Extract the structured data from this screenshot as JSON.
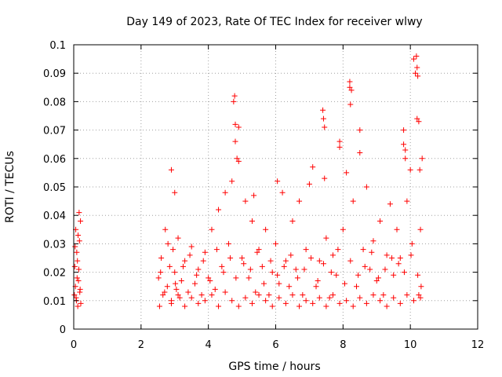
{
  "chart_data": {
    "type": "scatter",
    "title": "Day 149 of 2023, Rate Of TEC Index for receiver wlwy",
    "xlabel": "GPS time / hours",
    "ylabel": "ROTI / TECUs",
    "xlim": [
      0,
      12
    ],
    "ylim": [
      0,
      0.1
    ],
    "xticks": [
      "0",
      "2",
      "4",
      "6",
      "8",
      "10",
      "12"
    ],
    "yticks": [
      "0",
      "0.01",
      "0.02",
      "0.03",
      "0.04",
      "0.05",
      "0.06",
      "0.07",
      "0.08",
      "0.09",
      "0.1"
    ],
    "grid": true,
    "marker": "plus",
    "color": "#ff0000",
    "series": [
      {
        "x": [
          0.02,
          0.03,
          0.05,
          0.06,
          0.08,
          0.09,
          0.1,
          0.12,
          0.13,
          0.15,
          0.16,
          0.18,
          0.2,
          0.21,
          0.04,
          0.07,
          0.11,
          0.14,
          0.17,
          0.19,
          2.52,
          2.6,
          2.65,
          2.72,
          2.78,
          2.85,
          2.9,
          2.95,
          3.0,
          3.05,
          3.1,
          3.15,
          3.2,
          3.3,
          3.4,
          3.5,
          3.6,
          3.7,
          3.8,
          3.9,
          4.0,
          4.1,
          4.2,
          4.3,
          4.4,
          4.5,
          4.6,
          4.7,
          4.75,
          4.8,
          4.85,
          4.9,
          5.0,
          5.1,
          5.2,
          5.3,
          5.4,
          5.5,
          5.6,
          5.7,
          5.8,
          5.9,
          6.0,
          6.1,
          6.2,
          6.3,
          6.4,
          6.5,
          6.6,
          6.7,
          6.8,
          6.9,
          7.0,
          7.1,
          7.2,
          7.3,
          7.4,
          7.45,
          7.5,
          7.6,
          7.7,
          7.8,
          7.9,
          8.0,
          8.1,
          8.2,
          8.25,
          8.3,
          8.4,
          8.5,
          8.6,
          8.7,
          8.8,
          8.9,
          9.0,
          9.1,
          9.2,
          9.3,
          9.4,
          9.5,
          9.6,
          9.7,
          9.8,
          9.85,
          9.9,
          10.0,
          10.05,
          10.1,
          10.15,
          10.2,
          10.25,
          10.3,
          10.35,
          2.55,
          2.7,
          2.9,
          3.1,
          3.3,
          3.5,
          3.7,
          3.9,
          4.1,
          4.3,
          4.5,
          4.7,
          4.9,
          5.1,
          5.3,
          5.5,
          5.7,
          5.9,
          6.1,
          6.3,
          6.5,
          6.7,
          6.9,
          7.1,
          7.3,
          7.5,
          7.7,
          7.9,
          8.1,
          8.3,
          8.5,
          8.7,
          8.9,
          9.1,
          9.3,
          9.5,
          9.7,
          9.9,
          10.1,
          10.3,
          2.58,
          2.8,
          3.02,
          3.25,
          3.45,
          3.65,
          3.85,
          4.05,
          4.25,
          4.45,
          4.65,
          4.82,
          5.05,
          5.25,
          5.45,
          5.65,
          5.85,
          6.05,
          6.25,
          6.45,
          6.65,
          6.85,
          7.05,
          7.25,
          7.42,
          7.65,
          7.85,
          8.05,
          8.22,
          8.45,
          8.65,
          8.85,
          9.05,
          9.25,
          9.45,
          9.65,
          9.82,
          10.02,
          10.22,
          10.32,
          2.9,
          3.0,
          4.78,
          4.8,
          4.9,
          8.2,
          8.22,
          9.8,
          9.85,
          10.18,
          10.2,
          10.22,
          10.25,
          10.28,
          7.42,
          7.45,
          7.9,
          8.5,
          5.35,
          6.05
        ],
        "y": [
          0.012,
          0.022,
          0.015,
          0.035,
          0.01,
          0.027,
          0.018,
          0.008,
          0.033,
          0.021,
          0.041,
          0.013,
          0.038,
          0.009,
          0.029,
          0.011,
          0.024,
          0.017,
          0.031,
          0.014,
          0.018,
          0.025,
          0.012,
          0.035,
          0.015,
          0.022,
          0.01,
          0.028,
          0.02,
          0.014,
          0.032,
          0.011,
          0.017,
          0.024,
          0.013,
          0.029,
          0.016,
          0.021,
          0.012,
          0.027,
          0.018,
          0.035,
          0.014,
          0.042,
          0.022,
          0.048,
          0.03,
          0.052,
          0.08,
          0.072,
          0.06,
          0.071,
          0.025,
          0.045,
          0.018,
          0.038,
          0.013,
          0.028,
          0.022,
          0.035,
          0.012,
          0.02,
          0.03,
          0.016,
          0.048,
          0.024,
          0.015,
          0.038,
          0.021,
          0.045,
          0.012,
          0.028,
          0.051,
          0.057,
          0.015,
          0.024,
          0.077,
          0.071,
          0.032,
          0.011,
          0.026,
          0.019,
          0.066,
          0.035,
          0.055,
          0.087,
          0.084,
          0.045,
          0.015,
          0.07,
          0.028,
          0.05,
          0.021,
          0.031,
          0.017,
          0.038,
          0.012,
          0.026,
          0.044,
          0.019,
          0.035,
          0.025,
          0.07,
          0.063,
          0.045,
          0.056,
          0.03,
          0.095,
          0.09,
          0.074,
          0.012,
          0.035,
          0.06,
          0.008,
          0.013,
          0.009,
          0.012,
          0.008,
          0.011,
          0.009,
          0.01,
          0.012,
          0.008,
          0.013,
          0.01,
          0.008,
          0.011,
          0.009,
          0.012,
          0.01,
          0.008,
          0.011,
          0.009,
          0.012,
          0.008,
          0.01,
          0.009,
          0.011,
          0.008,
          0.012,
          0.009,
          0.01,
          0.008,
          0.011,
          0.009,
          0.012,
          0.01,
          0.008,
          0.011,
          0.009,
          0.012,
          0.01,
          0.011,
          0.02,
          0.03,
          0.016,
          0.022,
          0.026,
          0.019,
          0.024,
          0.017,
          0.028,
          0.02,
          0.025,
          0.018,
          0.023,
          0.021,
          0.027,
          0.016,
          0.024,
          0.019,
          0.022,
          0.026,
          0.018,
          0.021,
          0.025,
          0.017,
          0.023,
          0.02,
          0.028,
          0.016,
          0.024,
          0.019,
          0.022,
          0.027,
          0.018,
          0.021,
          0.025,
          0.023,
          0.02,
          0.026,
          0.019,
          0.015,
          0.056,
          0.048,
          0.082,
          0.066,
          0.059,
          0.085,
          0.079,
          0.065,
          0.06,
          0.096,
          0.092,
          0.089,
          0.073,
          0.056,
          0.074,
          0.053,
          0.064,
          0.062,
          0.047,
          0.052
        ]
      }
    ]
  }
}
